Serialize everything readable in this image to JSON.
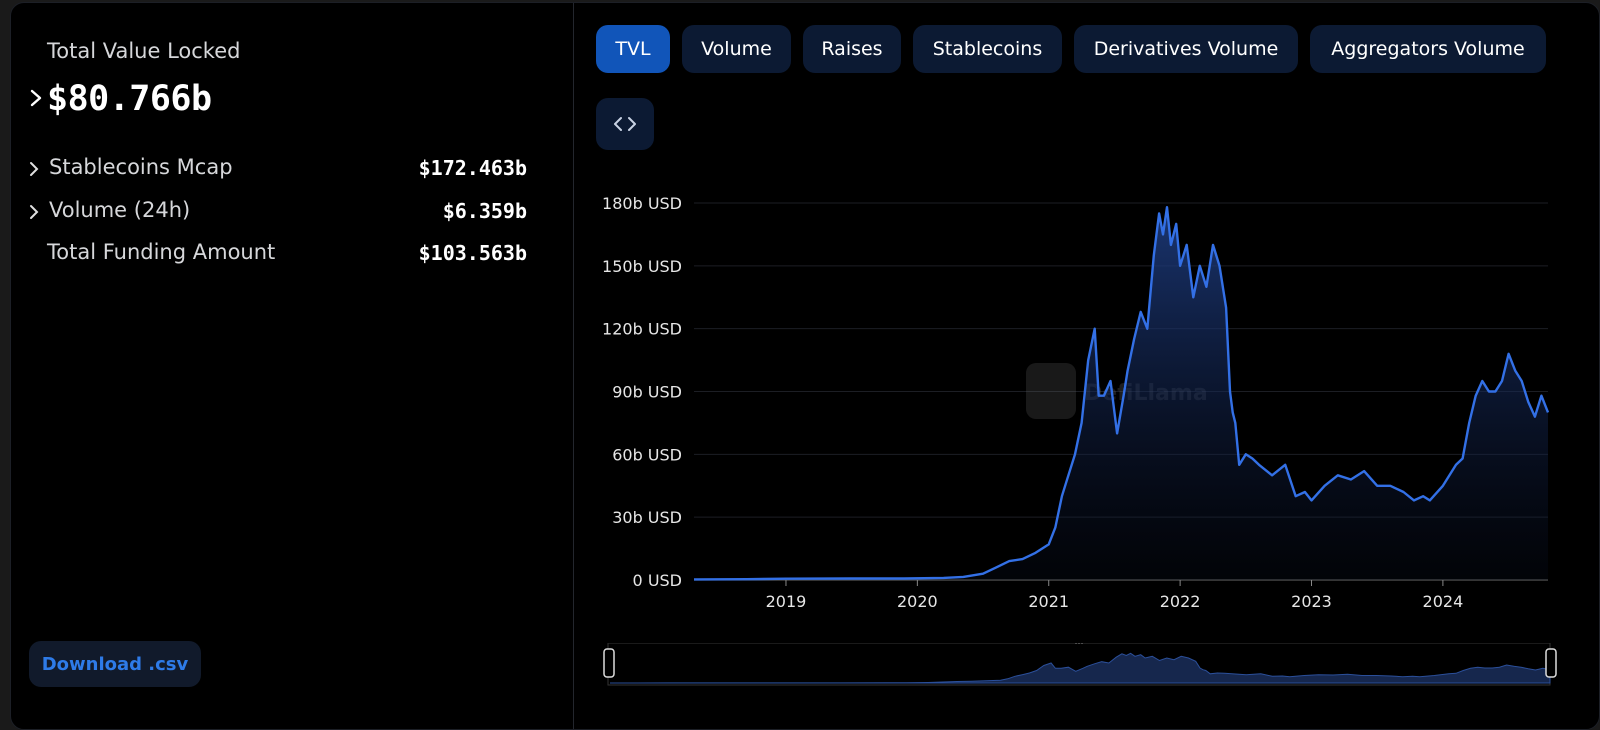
{
  "summary": {
    "tvl_label": "Total Value Locked",
    "tvl_value": "$80.766b",
    "metrics": [
      {
        "label": "Stablecoins Mcap",
        "value": "$172.463b",
        "expandable": true
      },
      {
        "label": "Volume (24h)",
        "value": "$6.359b",
        "expandable": true
      },
      {
        "label": "Total Funding Amount",
        "value": "$103.563b",
        "expandable": false
      }
    ],
    "download_label": "Download .csv"
  },
  "tabs": [
    {
      "label": "TVL",
      "active": true
    },
    {
      "label": "Volume",
      "active": false
    },
    {
      "label": "Raises",
      "active": false
    },
    {
      "label": "Stablecoins",
      "active": false
    },
    {
      "label": "Derivatives Volume",
      "active": false
    },
    {
      "label": "Aggregators Volume",
      "active": false
    }
  ],
  "embed_icon": "code-brackets-icon",
  "watermark": "DefiLlama",
  "colors": {
    "accent": "#1155b9",
    "line": "#3370e6",
    "panel_bg": "#000000",
    "tab_bg": "#0c1a33",
    "download_text": "#2e7be8"
  },
  "chart_data": {
    "type": "area",
    "title": "",
    "xlabel": "",
    "ylabel": "",
    "x_ticks": [
      "2019",
      "2020",
      "2021",
      "2022",
      "2023",
      "2024"
    ],
    "y_ticks": [
      "0 USD",
      "30b USD",
      "60b USD",
      "90b USD",
      "120b USD",
      "150b USD",
      "180b USD"
    ],
    "xlim": [
      2018.3,
      2024.8
    ],
    "ylim": [
      0,
      180
    ],
    "grid": true,
    "series": [
      {
        "x": [
          2018.3,
          2018.7,
          2019.0,
          2019.5,
          2019.9,
          2020.2,
          2020.35,
          2020.5,
          2020.6,
          2020.7,
          2020.8,
          2020.9,
          2021.0,
          2021.05,
          2021.1,
          2021.15,
          2021.2,
          2021.25,
          2021.3,
          2021.35,
          2021.38,
          2021.42,
          2021.47,
          2021.52,
          2021.57,
          2021.6,
          2021.65,
          2021.7,
          2021.75,
          2021.8,
          2021.84,
          2021.87,
          2021.9,
          2021.93,
          2021.97,
          2022.0,
          2022.05,
          2022.1,
          2022.15,
          2022.2,
          2022.25,
          2022.3,
          2022.35,
          2022.38,
          2022.4,
          2022.42,
          2022.45,
          2022.5,
          2022.55,
          2022.6,
          2022.7,
          2022.8,
          2022.88,
          2022.95,
          2023.0,
          2023.1,
          2023.2,
          2023.3,
          2023.4,
          2023.5,
          2023.6,
          2023.7,
          2023.78,
          2023.85,
          2023.9,
          2024.0,
          2024.1,
          2024.15,
          2024.2,
          2024.25,
          2024.3,
          2024.35,
          2024.4,
          2024.45,
          2024.5,
          2024.55,
          2024.6,
          2024.65,
          2024.7,
          2024.75,
          2024.8
        ],
        "y": [
          0.3,
          0.4,
          0.6,
          0.7,
          0.7,
          1.0,
          1.5,
          3,
          6,
          9,
          10,
          13,
          17,
          25,
          40,
          50,
          60,
          75,
          105,
          120,
          88,
          88,
          95,
          70,
          88,
          100,
          115,
          128,
          120,
          155,
          175,
          165,
          178,
          160,
          170,
          150,
          160,
          135,
          150,
          140,
          160,
          150,
          130,
          90,
          80,
          75,
          55,
          60,
          58,
          55,
          50,
          55,
          40,
          42,
          38,
          45,
          50,
          48,
          52,
          45,
          45,
          42,
          38,
          40,
          38,
          45,
          55,
          58,
          75,
          88,
          95,
          90,
          90,
          95,
          108,
          100,
          95,
          85,
          78,
          88,
          80
        ]
      }
    ]
  }
}
